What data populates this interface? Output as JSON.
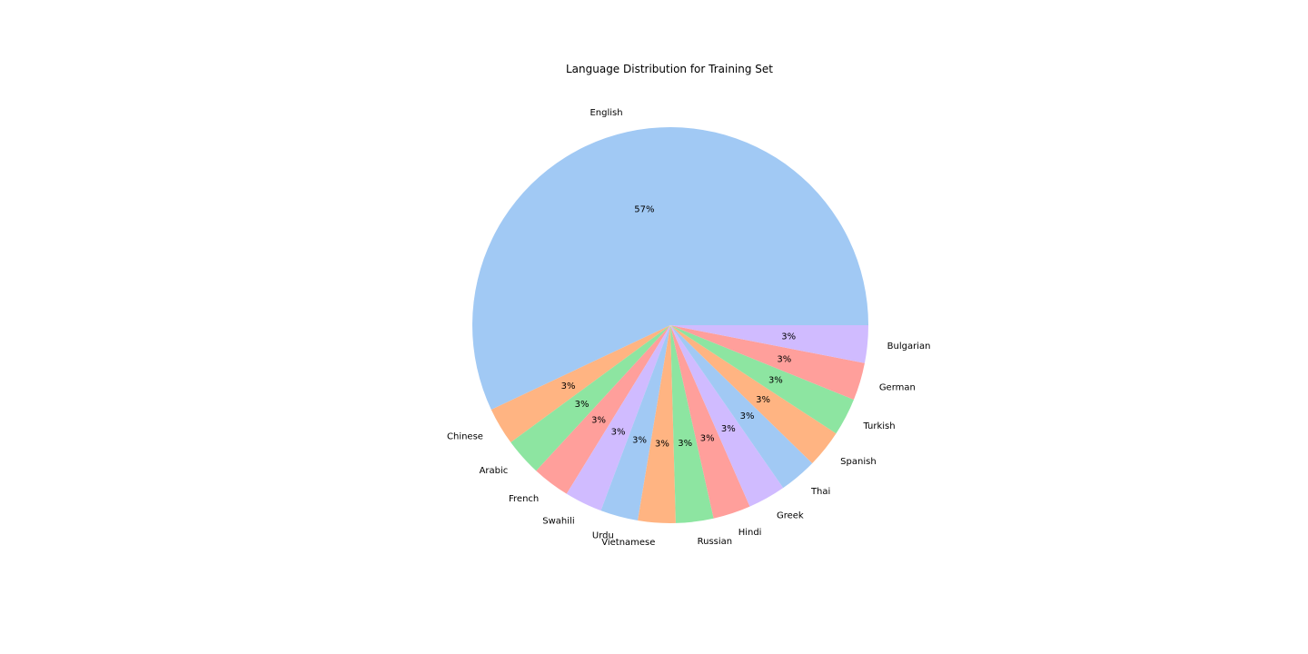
{
  "chart_data": {
    "type": "pie",
    "title": "Language Distribution for Training Set",
    "start_angle_deg": 0,
    "direction": "counterclockwise",
    "slices": [
      {
        "label": "English",
        "value": 57,
        "pct_label": "57%",
        "color": "#a1c9f4"
      },
      {
        "label": "Chinese",
        "value": 3.07,
        "pct_label": "3%",
        "color": "#ffb482"
      },
      {
        "label": "Arabic",
        "value": 3.07,
        "pct_label": "3%",
        "color": "#8de5a1"
      },
      {
        "label": "French",
        "value": 3.07,
        "pct_label": "3%",
        "color": "#ff9f9b"
      },
      {
        "label": "Swahili",
        "value": 3.07,
        "pct_label": "3%",
        "color": "#d0bbff"
      },
      {
        "label": "Urdu",
        "value": 3.07,
        "pct_label": "3%",
        "color": "#a1c9f4"
      },
      {
        "label": "Vietnamese",
        "value": 3.07,
        "pct_label": "3%",
        "color": "#ffb482"
      },
      {
        "label": "Russian",
        "value": 3.07,
        "pct_label": "3%",
        "color": "#8de5a1"
      },
      {
        "label": "Hindi",
        "value": 3.07,
        "pct_label": "3%",
        "color": "#ff9f9b"
      },
      {
        "label": "Greek",
        "value": 3.07,
        "pct_label": "3%",
        "color": "#d0bbff"
      },
      {
        "label": "Thai",
        "value": 3.07,
        "pct_label": "3%",
        "color": "#a1c9f4"
      },
      {
        "label": "Spanish",
        "value": 3.07,
        "pct_label": "3%",
        "color": "#ffb482"
      },
      {
        "label": "Turkish",
        "value": 3.07,
        "pct_label": "3%",
        "color": "#8de5a1"
      },
      {
        "label": "German",
        "value": 3.07,
        "pct_label": "3%",
        "color": "#ff9f9b"
      },
      {
        "label": "Bulgarian",
        "value": 3.07,
        "pct_label": "3%",
        "color": "#d0bbff"
      }
    ]
  }
}
